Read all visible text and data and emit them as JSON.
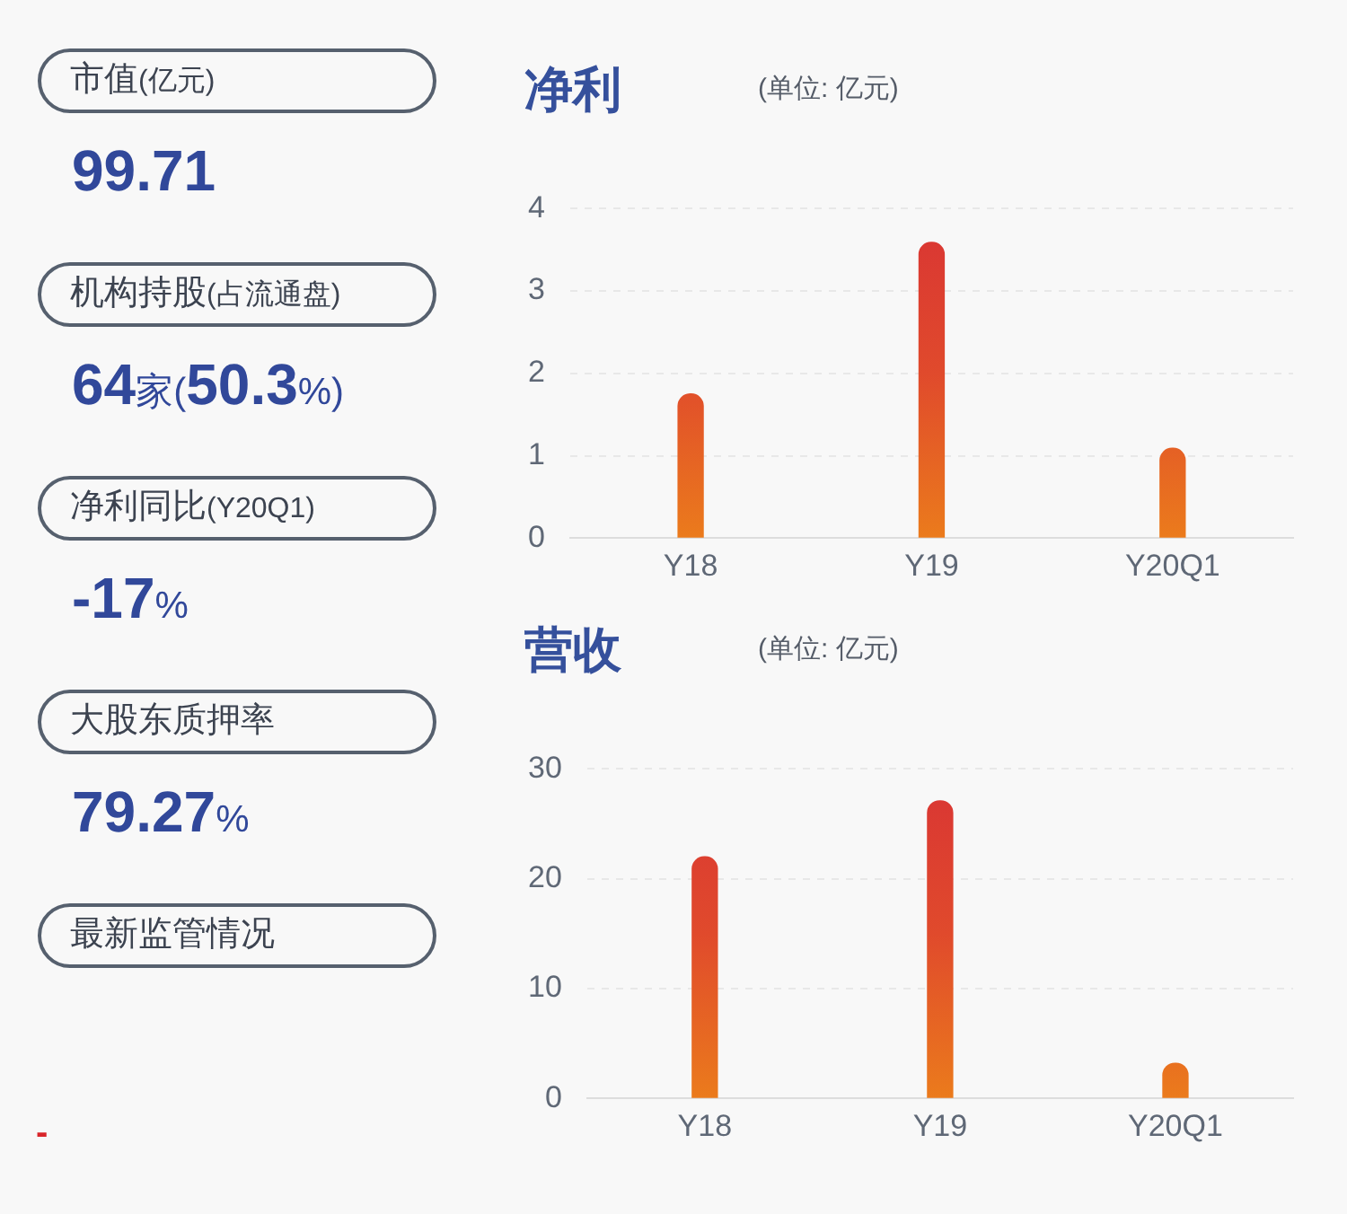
{
  "chart_data": [
    {
      "type": "other",
      "annotations": [
        "市值(亿元)",
        "99.71",
        "机构持股(占流通盘)",
        "64家(50.3%)",
        "净利同比(Y20Q1)",
        "-17%",
        "大股东质押率",
        "79.27%",
        "最新监管情况",
        "-"
      ]
    },
    {
      "type": "bar",
      "title": "净利",
      "subtitle": "(单位: 亿元)",
      "categories": [
        "Y18",
        "Y19",
        "Y20Q1"
      ],
      "values": [
        1.75,
        3.59,
        1.09
      ],
      "color": "#e04a2c",
      "ylim": [
        0,
        4
      ],
      "yticks": [
        0,
        1,
        2,
        3,
        4
      ],
      "grid": "y",
      "legend": false
    },
    {
      "type": "bar",
      "title": "营收",
      "subtitle": "(单位: 亿元)",
      "categories": [
        "Y18",
        "Y19",
        "Y20Q1"
      ],
      "values": [
        22,
        27.1,
        3.2
      ],
      "color": "#e04a2c",
      "ylim": [
        0,
        30
      ],
      "yticks": [
        0,
        10,
        20,
        30
      ],
      "grid": "y",
      "legend": false
    }
  ]
}
